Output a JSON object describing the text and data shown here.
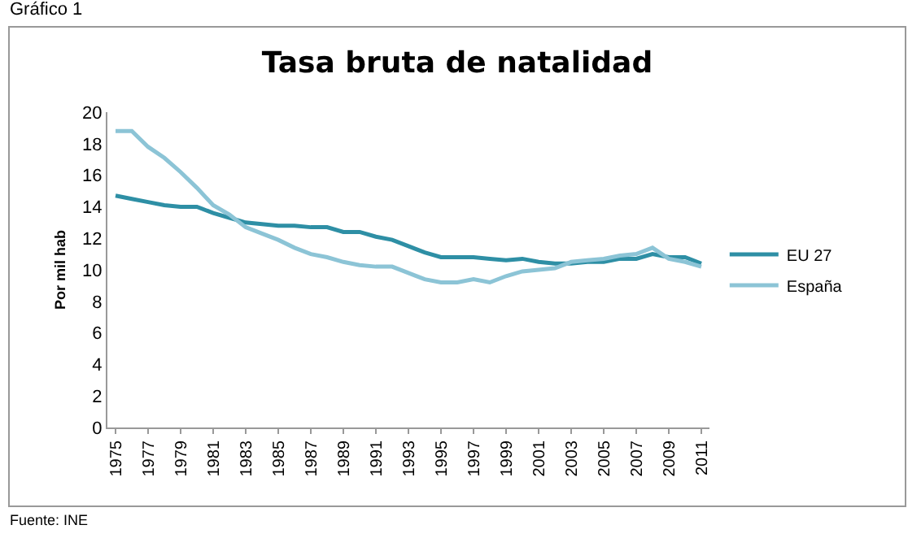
{
  "chart_data": {
    "type": "line",
    "title": "Tasa bruta de natalidad",
    "ylabel": "Por mil hab",
    "annotations": [
      "Gráfico 1",
      "Fuente: INE"
    ],
    "x": [
      1975,
      1976,
      1977,
      1978,
      1979,
      1980,
      1981,
      1982,
      1983,
      1984,
      1985,
      1986,
      1987,
      1988,
      1989,
      1990,
      1991,
      1992,
      1993,
      1994,
      1995,
      1996,
      1997,
      1998,
      1999,
      2000,
      2001,
      2002,
      2003,
      2004,
      2005,
      2006,
      2007,
      2008,
      2009,
      2010,
      2011
    ],
    "series": [
      {
        "name": "EU 27",
        "color": "#2e8fa5",
        "values": [
          14.7,
          14.5,
          14.3,
          14.1,
          14.0,
          14.0,
          13.6,
          13.3,
          13.0,
          12.9,
          12.8,
          12.8,
          12.7,
          12.7,
          12.4,
          12.4,
          12.1,
          11.9,
          11.5,
          11.1,
          10.8,
          10.8,
          10.8,
          10.7,
          10.6,
          10.7,
          10.5,
          10.4,
          10.4,
          10.5,
          10.5,
          10.7,
          10.7,
          11.0,
          10.8,
          10.8,
          10.4
        ]
      },
      {
        "name": "España",
        "color": "#8cc4d6",
        "values": [
          18.8,
          18.8,
          17.8,
          17.1,
          16.2,
          15.2,
          14.1,
          13.5,
          12.7,
          12.3,
          11.9,
          11.4,
          11.0,
          10.8,
          10.5,
          10.3,
          10.2,
          10.2,
          9.8,
          9.4,
          9.2,
          9.2,
          9.4,
          9.2,
          9.6,
          9.9,
          10.0,
          10.1,
          10.5,
          10.6,
          10.7,
          10.9,
          11.0,
          11.4,
          10.7,
          10.5,
          10.2
        ]
      }
    ],
    "xlim": [
      1974.5,
      2011.5
    ],
    "xticks": [
      1975,
      1977,
      1979,
      1981,
      1983,
      1985,
      1987,
      1989,
      1991,
      1993,
      1995,
      1997,
      1999,
      2001,
      2003,
      2005,
      2007,
      2009,
      2011
    ],
    "ylim": [
      0,
      20
    ],
    "yticks": [
      0,
      2,
      4,
      6,
      8,
      10,
      12,
      14,
      16,
      18,
      20
    ],
    "grid": false,
    "legend": "right",
    "marker": "none",
    "line_style": "solid"
  }
}
